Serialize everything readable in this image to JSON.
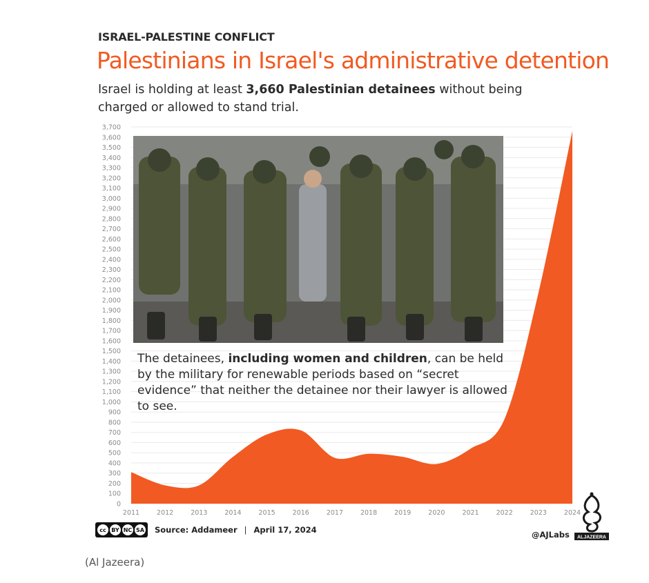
{
  "header": {
    "kicker": "ISRAEL-PALESTINE CONFLICT",
    "title": "Palestinians in Israel's administrative detention",
    "subtitle_pre": "Israel is holding at least ",
    "subtitle_bold": "3,660 Palestinian detainees",
    "subtitle_post": " without being charged or allowed to stand trial."
  },
  "note": {
    "pre": "The detainees, ",
    "bold": "including women and children",
    "post": ", can be held by the military for renewable periods based on “secret evidence” that neither the detainee nor their lawyer is allowed to see."
  },
  "footer": {
    "source": "Source: Addameer",
    "separator": "|",
    "date": "April 17, 2024",
    "handle": "@AJLabs",
    "logo_text": "ALJAZEERA",
    "license_badges": [
      "cc",
      "BY",
      "NC",
      "SA"
    ]
  },
  "caption": "(Al Jazeera)",
  "colors": {
    "accent": "#f15a22",
    "axis_text": "#8a8a8a",
    "title": "#f15a22"
  },
  "chart_data": {
    "type": "area",
    "x": [
      2011,
      2012,
      2013,
      2014,
      2015,
      2016,
      2017,
      2018,
      2019,
      2020,
      2021,
      2022,
      2023,
      2024
    ],
    "values": [
      310,
      180,
      180,
      460,
      680,
      720,
      450,
      490,
      460,
      390,
      540,
      830,
      2070,
      3660
    ],
    "ylim": [
      0,
      3700
    ],
    "yticks": [
      0,
      100,
      200,
      300,
      400,
      500,
      600,
      700,
      800,
      900,
      1000,
      1100,
      1200,
      1300,
      1400,
      1500,
      1600,
      1700,
      1800,
      1900,
      2000,
      2100,
      2200,
      2300,
      2400,
      2500,
      2600,
      2700,
      2800,
      2900,
      3000,
      3100,
      3200,
      3300,
      3400,
      3500,
      3600,
      3700
    ],
    "ytick_labels": [
      "0",
      "100",
      "200",
      "300",
      "400",
      "500",
      "600",
      "700",
      "800",
      "900",
      "1,000",
      "1,100",
      "1,200",
      "1,300",
      "1,400",
      "1,500",
      "1,600",
      "1,700",
      "1,800",
      "1,900",
      "2,000",
      "2,100",
      "2,200",
      "2,300",
      "2,400",
      "2,500",
      "2,600",
      "2,700",
      "2,800",
      "2,900",
      "3,000",
      "3,100",
      "3,200",
      "3,300",
      "3,400",
      "3,500",
      "3,600",
      "3,700"
    ],
    "grid": true,
    "color": "#f15a22"
  }
}
